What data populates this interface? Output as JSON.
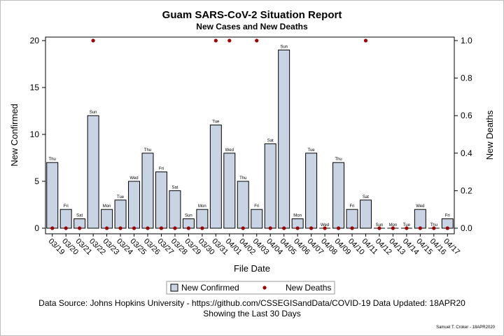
{
  "chart_data": {
    "type": "bar",
    "title": "Guam SARS-CoV-2 Situation Report",
    "subtitle": "New Cases and New Deaths",
    "xlabel": "File Date",
    "ylabel_left": "New Confirmed",
    "ylabel_right": "New Deaths",
    "ylim_left": [
      0,
      20
    ],
    "ylim_right": [
      0,
      1.0
    ],
    "yticks_left": [
      "0",
      "5",
      "10",
      "15",
      "20"
    ],
    "yticks_right": [
      "0.0",
      "0.2",
      "0.4",
      "0.6",
      "0.8",
      "1.0"
    ],
    "categories": [
      "03/19",
      "03/20",
      "03/21",
      "03/22",
      "03/23",
      "03/24",
      "03/25",
      "03/26",
      "03/27",
      "03/28",
      "03/29",
      "03/30",
      "03/31",
      "04/01",
      "04/02",
      "04/03",
      "04/04",
      "04/05",
      "04/06",
      "04/07",
      "04/08",
      "04/09",
      "04/10",
      "04/11",
      "04/12",
      "04/13",
      "04/14",
      "04/15",
      "04/16",
      "04/17"
    ],
    "day_labels": [
      "Thu",
      "Fri",
      "Sat",
      "Sun",
      "Mon",
      "Tue",
      "Wed",
      "Thu",
      "Fri",
      "Sat",
      "Sun",
      "Mon",
      "Tue",
      "Wed",
      "Thu",
      "Fri",
      "Sat",
      "Sun",
      "Mon",
      "Tue",
      "Wed",
      "Thu",
      "Fri",
      "Sat",
      "Sun",
      "Mon",
      "Tue",
      "Wed",
      "Thu",
      "Fri"
    ],
    "series": [
      {
        "name": "New Confirmed",
        "type": "bar",
        "axis": "left",
        "color": "#c8d3e3",
        "values": [
          7,
          2,
          1,
          12,
          2,
          3,
          5,
          8,
          6,
          4,
          1,
          2,
          11,
          8,
          5,
          2,
          9,
          19,
          1,
          8,
          0,
          7,
          2,
          3,
          0,
          0,
          0,
          2,
          0,
          1
        ]
      },
      {
        "name": "New Deaths",
        "type": "scatter",
        "axis": "right",
        "color": "#a00000",
        "values": [
          0,
          0,
          0,
          1,
          0,
          0,
          0,
          0,
          0,
          0,
          0,
          0,
          1,
          1,
          0,
          1,
          0,
          0,
          0,
          0,
          0,
          0,
          0,
          1,
          0,
          0,
          0,
          0,
          0,
          0
        ]
      }
    ],
    "legend_position": "bottom",
    "grid": false
  },
  "footnote_line1": "Data Source: Johns Hopkins University - https://github.com/CSSEGISandData/COVID-19 Data Updated: 18APR20",
  "footnote_line2": "Showing the Last 30 Days",
  "credit": "Samuel T. Croker - 18APR2020",
  "colors": {
    "bar_fill": "#c8d3e3",
    "bar_stroke": "#000000",
    "death_marker": "#a00000"
  }
}
